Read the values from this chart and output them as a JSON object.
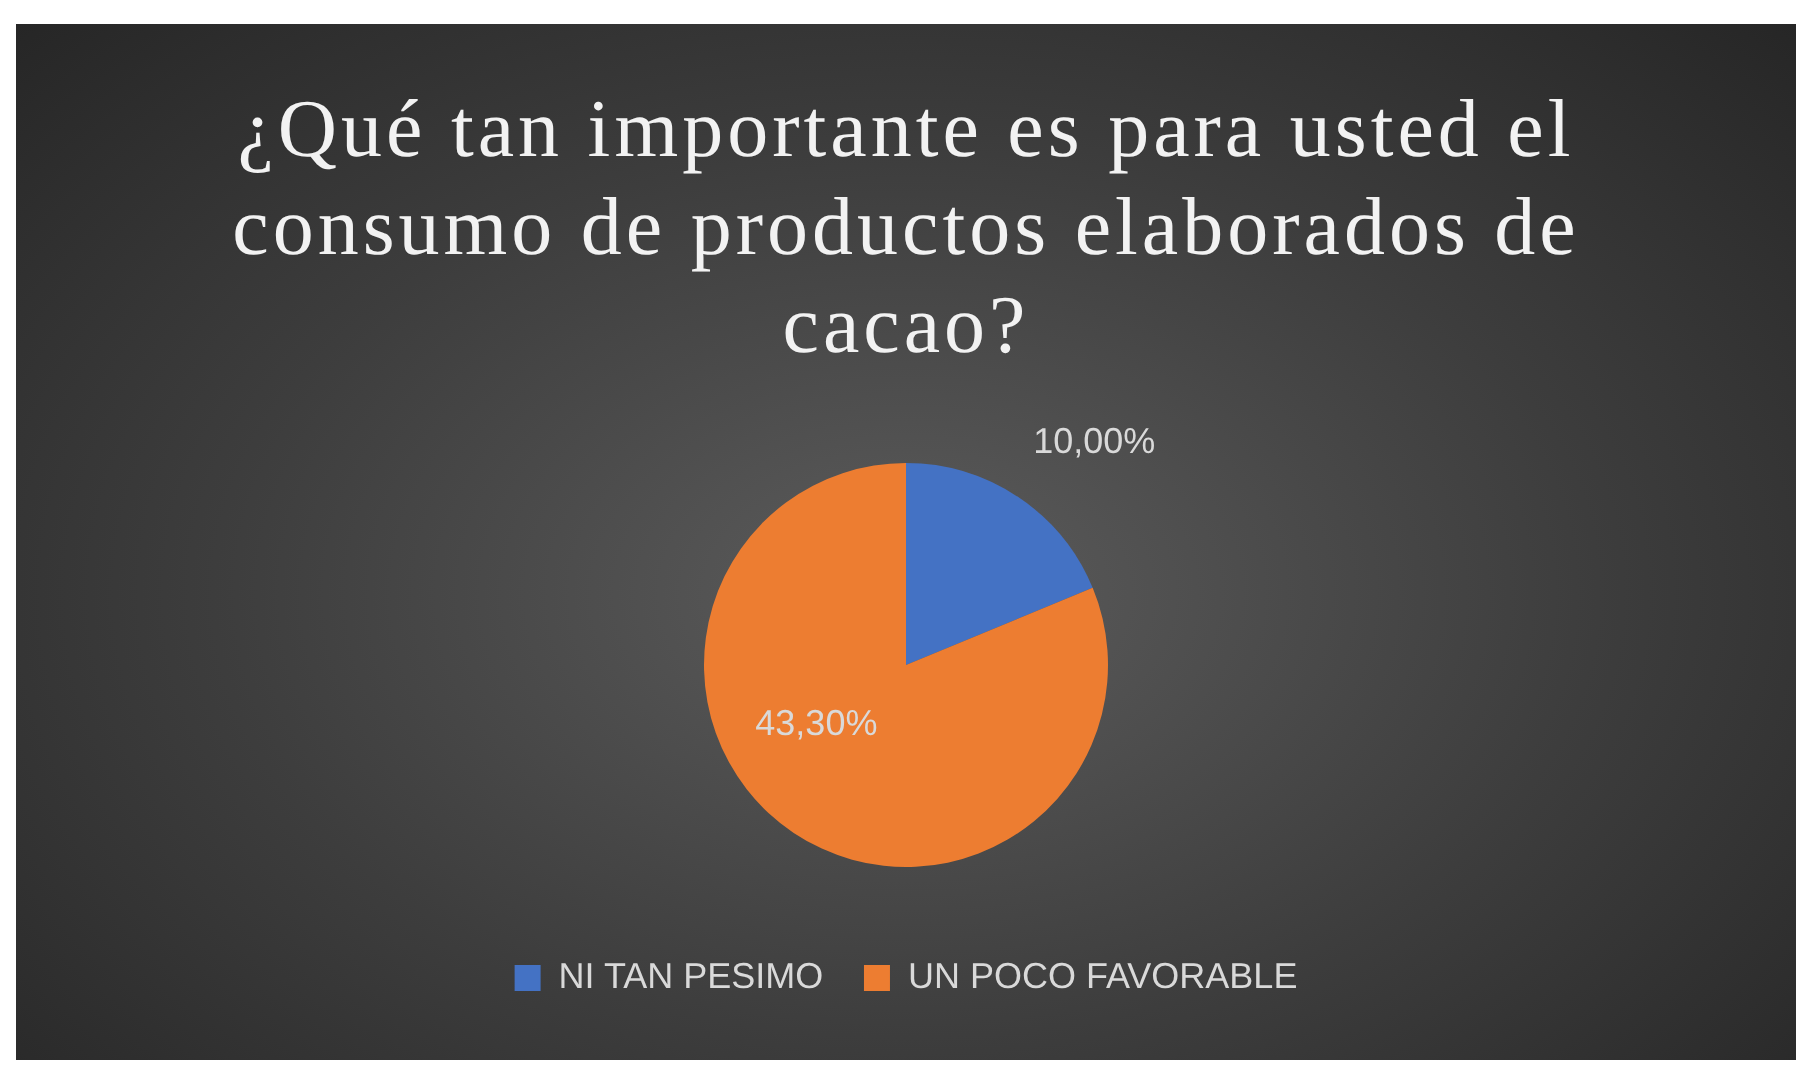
{
  "chart_data": {
    "type": "pie",
    "title": "¿Qué tan importante es para usted el consumo de productos elaborados de cacao?",
    "categories": [
      "NI TAN PESIMO",
      "UN POCO FAVORABLE"
    ],
    "values": [
      10,
      43.3
    ],
    "colors": [
      "#4472c4",
      "#ed7d31"
    ],
    "value_labels": [
      "10,00%",
      "43,30%"
    ],
    "legend": "bottom"
  }
}
